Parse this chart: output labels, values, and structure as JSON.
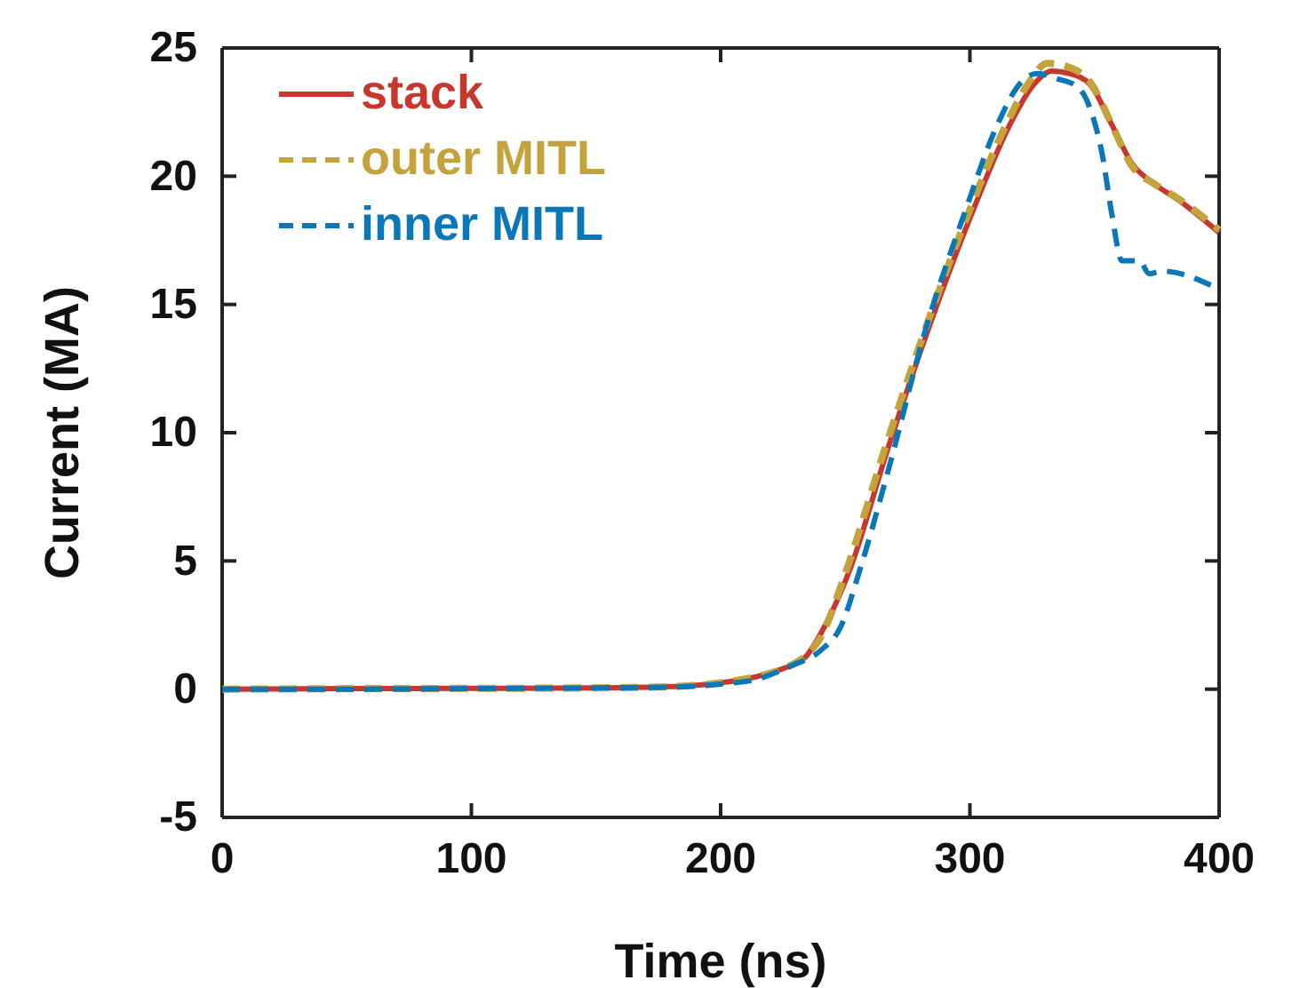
{
  "chart_data": {
    "type": "line",
    "xlabel": "Time (ns)",
    "ylabel": "Current (MA)",
    "xlim": [
      0,
      400
    ],
    "xticks": [
      0,
      100,
      200,
      300,
      400
    ],
    "ylim": [
      -5,
      25
    ],
    "yticks": [
      -5,
      0,
      5,
      10,
      15,
      20,
      25
    ],
    "grid": false,
    "legend": "top left",
    "marker": "none",
    "series": [
      {
        "name": "stack",
        "color": "#c8372d",
        "line_style": "solid",
        "x": [
          0,
          50,
          100,
          150,
          180,
          200,
          215,
          225,
          234,
          242,
          252,
          267,
          283,
          301,
          316,
          325,
          333,
          340,
          348,
          357,
          365,
          374,
          384,
          400
        ],
        "values": [
          0,
          0.02,
          0.03,
          0.05,
          0.1,
          0.25,
          0.5,
          0.8,
          1.25,
          2.5,
          4.7,
          9.35,
          13.95,
          18.6,
          22.0,
          23.5,
          24.1,
          24.0,
          23.6,
          22.0,
          20.5,
          19.7,
          19.05,
          17.8
        ]
      },
      {
        "name": "outer MITL",
        "color": "#c4a23c",
        "line_style": "dashed",
        "x": [
          0,
          50,
          100,
          150,
          180,
          200,
          215,
          225,
          234,
          240,
          250,
          266,
          282,
          300,
          315,
          324,
          331,
          338,
          348,
          357,
          365,
          374,
          384,
          400
        ],
        "values": [
          0,
          0.02,
          0.03,
          0.05,
          0.1,
          0.25,
          0.5,
          0.8,
          1.3,
          2.0,
          4.5,
          9.4,
          14.0,
          18.7,
          22.1,
          23.7,
          24.4,
          24.3,
          23.7,
          22.0,
          20.4,
          19.7,
          19.1,
          17.9
        ]
      },
      {
        "name": "inner MITL",
        "color": "#0a77b8",
        "line_style": "dashed",
        "x": [
          0,
          50,
          100,
          150,
          180,
          200,
          215,
          228,
          240,
          248,
          256,
          268,
          282,
          298,
          311,
          320,
          327,
          335,
          343,
          348,
          353,
          357,
          361,
          368,
          372,
          377,
          400
        ],
        "values": [
          0,
          0,
          0.02,
          0.05,
          0.08,
          0.2,
          0.4,
          0.9,
          1.5,
          2.4,
          4.7,
          8.8,
          13.95,
          18.6,
          22.0,
          23.6,
          24.0,
          23.8,
          23.5,
          22.7,
          20.9,
          18.5,
          16.7,
          16.7,
          16.2,
          16.3,
          15.6
        ]
      }
    ]
  }
}
